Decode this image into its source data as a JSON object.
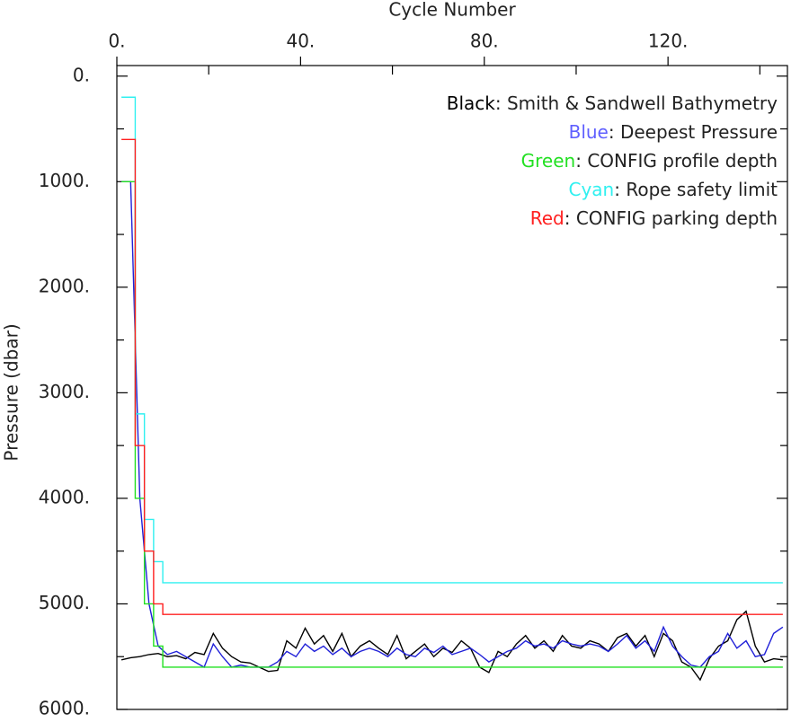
{
  "chart_data": {
    "type": "line",
    "x_label": "Cycle Number",
    "y_label": "Pressure (dbar)",
    "xlim": [
      0,
      146
    ],
    "ylim": [
      6000,
      -100
    ],
    "xticks": [
      {
        "value": 0,
        "label": "0."
      },
      {
        "value": 40,
        "label": "40."
      },
      {
        "value": 80,
        "label": "80."
      },
      {
        "value": 120,
        "label": "120."
      }
    ],
    "xminorticks": [
      20,
      60,
      100,
      140
    ],
    "yticks": [
      {
        "value": 0,
        "label": "0."
      },
      {
        "value": 1000,
        "label": "1000."
      },
      {
        "value": 2000,
        "label": "2000."
      },
      {
        "value": 3000,
        "label": "3000."
      },
      {
        "value": 4000,
        "label": "4000."
      },
      {
        "value": 5000,
        "label": "5000."
      },
      {
        "value": 6000,
        "label": "6000."
      }
    ],
    "yminorticks": [
      500,
      1500,
      2500,
      3500,
      4500,
      5500
    ],
    "legend_separator": ": ",
    "legend_position": "upper right",
    "series": [
      {
        "name": "Smith & Sandwell Bathymetry",
        "color_name": "Black",
        "color": "#000000",
        "label_color": "#000000",
        "step": false,
        "x": [
          1,
          3,
          5,
          7,
          9,
          11,
          13,
          15,
          17,
          19,
          21,
          23,
          25,
          27,
          29,
          31,
          33,
          35,
          37,
          39,
          41,
          43,
          45,
          47,
          49,
          51,
          53,
          55,
          57,
          59,
          61,
          63,
          65,
          67,
          69,
          71,
          73,
          75,
          77,
          79,
          81,
          83,
          85,
          87,
          89,
          91,
          93,
          95,
          97,
          99,
          101,
          103,
          105,
          107,
          109,
          111,
          113,
          115,
          117,
          119,
          121,
          123,
          125,
          127,
          129,
          131,
          133,
          135,
          137,
          139,
          141,
          143,
          145
        ],
        "values": [
          5530,
          5510,
          5500,
          5480,
          5470,
          5500,
          5490,
          5520,
          5460,
          5480,
          5280,
          5420,
          5500,
          5550,
          5560,
          5600,
          5640,
          5630,
          5350,
          5420,
          5230,
          5380,
          5300,
          5450,
          5280,
          5500,
          5400,
          5350,
          5420,
          5480,
          5300,
          5520,
          5450,
          5380,
          5500,
          5420,
          5460,
          5350,
          5420,
          5600,
          5650,
          5450,
          5500,
          5380,
          5300,
          5420,
          5350,
          5450,
          5300,
          5400,
          5420,
          5350,
          5380,
          5450,
          5320,
          5280,
          5400,
          5300,
          5500,
          5280,
          5350,
          5550,
          5600,
          5720,
          5520,
          5400,
          5350,
          5150,
          5070,
          5400,
          5550,
          5520,
          5530
        ]
      },
      {
        "name": "Deepest Pressure",
        "color_name": "Blue",
        "color": "#2020d8",
        "label_color": "#6060ff",
        "step": false,
        "x": [
          1,
          3,
          5,
          7,
          9,
          11,
          13,
          15,
          17,
          19,
          21,
          23,
          25,
          27,
          29,
          31,
          33,
          35,
          37,
          39,
          41,
          43,
          45,
          47,
          49,
          51,
          53,
          55,
          57,
          59,
          61,
          63,
          65,
          67,
          69,
          71,
          73,
          75,
          77,
          79,
          81,
          83,
          85,
          87,
          89,
          91,
          93,
          95,
          97,
          99,
          101,
          103,
          105,
          107,
          109,
          111,
          113,
          115,
          117,
          119,
          121,
          123,
          125,
          127,
          129,
          131,
          133,
          135,
          137,
          139,
          141,
          143,
          145
        ],
        "values": [
          1000,
          1000,
          4000,
          5000,
          5400,
          5480,
          5450,
          5500,
          5550,
          5600,
          5380,
          5500,
          5600,
          5580,
          5600,
          5600,
          5600,
          5550,
          5450,
          5500,
          5380,
          5450,
          5400,
          5480,
          5420,
          5500,
          5450,
          5420,
          5450,
          5500,
          5420,
          5480,
          5500,
          5420,
          5460,
          5400,
          5480,
          5450,
          5420,
          5480,
          5550,
          5500,
          5450,
          5420,
          5350,
          5400,
          5380,
          5420,
          5350,
          5380,
          5400,
          5380,
          5400,
          5450,
          5380,
          5300,
          5420,
          5350,
          5450,
          5220,
          5400,
          5500,
          5580,
          5600,
          5500,
          5450,
          5280,
          5420,
          5350,
          5500,
          5480,
          5280,
          5220
        ]
      },
      {
        "name": "CONFIG profile depth",
        "color_name": "Green",
        "color": "#22e022",
        "label_color": "#22e022",
        "step": true,
        "x": [
          1,
          4,
          6,
          8,
          10,
          145
        ],
        "values": [
          1000,
          4000,
          5000,
          5400,
          5600,
          5600
        ]
      },
      {
        "name": "Rope safety limit",
        "color_name": "Cyan",
        "color": "#30f0f0",
        "label_color": "#30f0f0",
        "step": true,
        "x": [
          1,
          4,
          6,
          8,
          10,
          145
        ],
        "values": [
          200,
          3200,
          4200,
          4600,
          4800,
          4800
        ]
      },
      {
        "name": "CONFIG parking depth",
        "color_name": "Red",
        "color": "#ff2020",
        "label_color": "#ff2020",
        "step": true,
        "x": [
          1,
          4,
          6,
          8,
          10,
          145
        ],
        "values": [
          600,
          3500,
          4500,
          5000,
          5100,
          5100
        ]
      }
    ]
  }
}
